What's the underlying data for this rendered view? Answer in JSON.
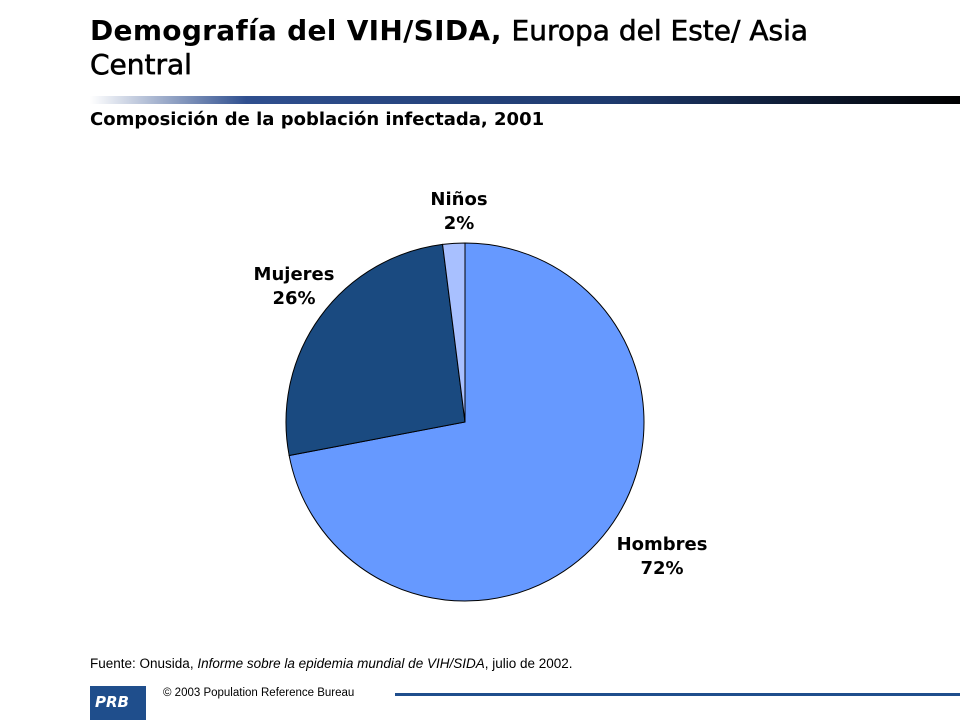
{
  "header": {
    "title_part1": "Demografía del VIH/SIDA,",
    "title_part2": "Europa del Este/ Asia Central",
    "subtitle": "Composición de la población infectada, 2001"
  },
  "chart_data": {
    "type": "pie",
    "title": "Composición de la población infectada, 2001",
    "slices": [
      {
        "label": "Hombres",
        "value": 72,
        "display": "72%",
        "color": "#6699ff"
      },
      {
        "label": "Mujeres",
        "value": 26,
        "display": "26%",
        "color": "#1a4a80"
      },
      {
        "label": "Niños",
        "value": 2,
        "display": "2%",
        "color": "#a8c0ff"
      }
    ]
  },
  "footer": {
    "source_prefix": "Fuente: Onusida, ",
    "source_title": "Informe sobre la epidemia mundial de VIH/SIDA",
    "source_suffix": ", julio de 2002.",
    "logo_text": "PRB",
    "copyright": "© 2003  Population Reference Bureau"
  }
}
